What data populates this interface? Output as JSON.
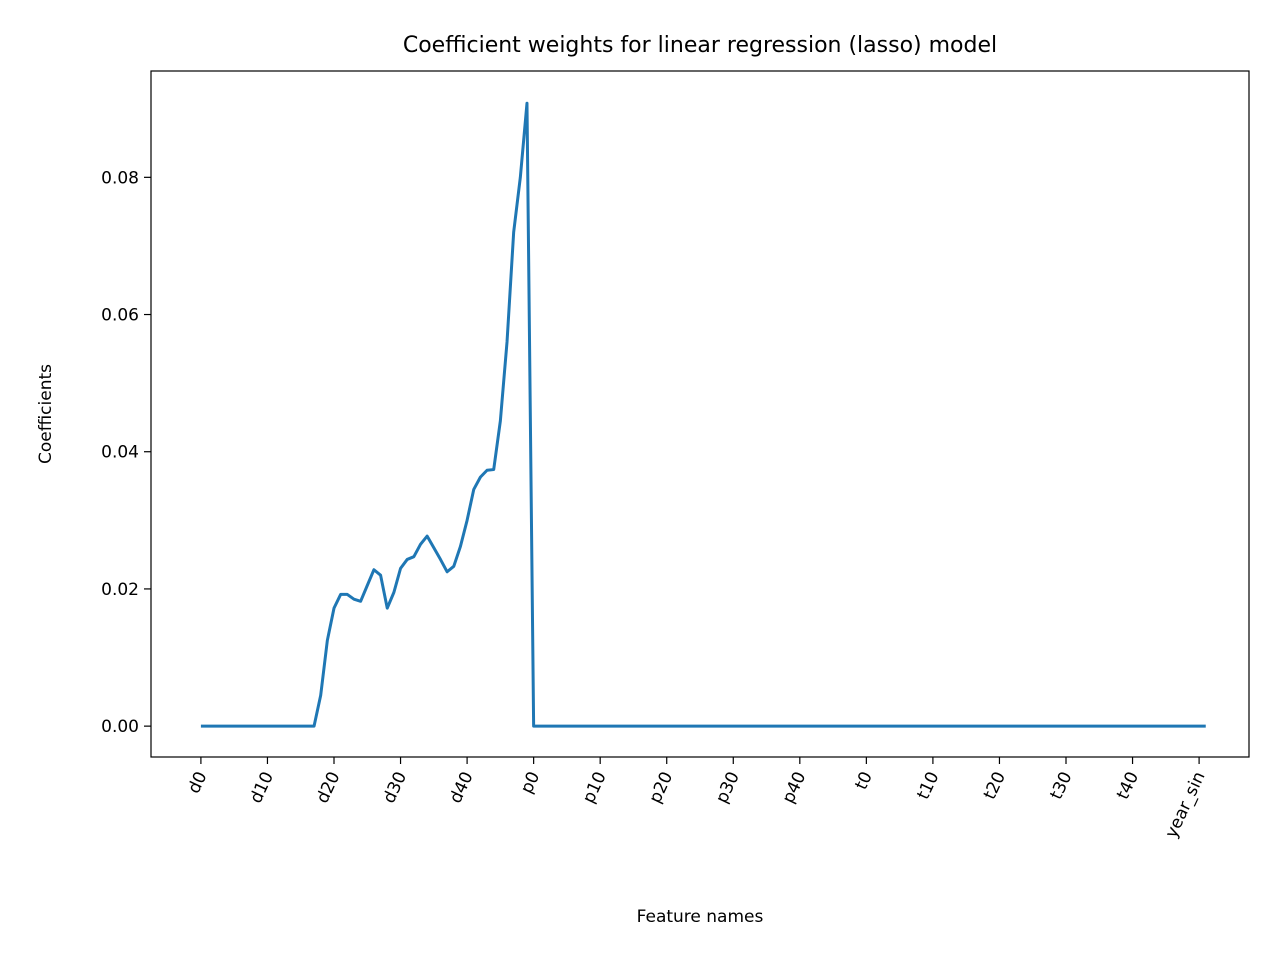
{
  "chart_data": {
    "type": "line",
    "title": "Coefficient weights for linear regression (lasso) model",
    "xlabel": "Feature names",
    "ylabel": "Coefficients",
    "xlim": [
      -7.5,
      157.5
    ],
    "ylim": [
      -0.0045,
      0.0955
    ],
    "yticks": [
      0.0,
      0.02,
      0.04,
      0.06,
      0.08
    ],
    "ytick_labels": [
      "0.00",
      "0.02",
      "0.04",
      "0.06",
      "0.08"
    ],
    "xticks": [
      0,
      10,
      20,
      30,
      40,
      50,
      60,
      70,
      80,
      90,
      100,
      110,
      120,
      130,
      140,
      150
    ],
    "xtick_labels": [
      "d0",
      "d10",
      "d20",
      "d30",
      "d40",
      "p0",
      "p10",
      "p20",
      "p30",
      "p40",
      "t0",
      "t10",
      "t20",
      "t30",
      "t40",
      "year_sin"
    ],
    "line_color": "#1f77b4",
    "grid": false,
    "series": [
      {
        "x": [
          0,
          17,
          18,
          19,
          20,
          21,
          22,
          23,
          24,
          25,
          26,
          27,
          28,
          29,
          30,
          31,
          32,
          33,
          34,
          35,
          36,
          37,
          38,
          39,
          40,
          41,
          42,
          43,
          44,
          45,
          46,
          47,
          48,
          49,
          50,
          151
        ],
        "y": [
          0,
          0,
          0.0045,
          0.0125,
          0.0172,
          0.0192,
          0.0192,
          0.0185,
          0.0182,
          0.0205,
          0.0228,
          0.022,
          0.0172,
          0.0195,
          0.023,
          0.0243,
          0.0247,
          0.0265,
          0.0277,
          0.026,
          0.0243,
          0.0225,
          0.0233,
          0.0262,
          0.03,
          0.0345,
          0.0363,
          0.0373,
          0.0374,
          0.0445,
          0.056,
          0.072,
          0.08,
          0.0908,
          0,
          0
        ]
      }
    ]
  }
}
